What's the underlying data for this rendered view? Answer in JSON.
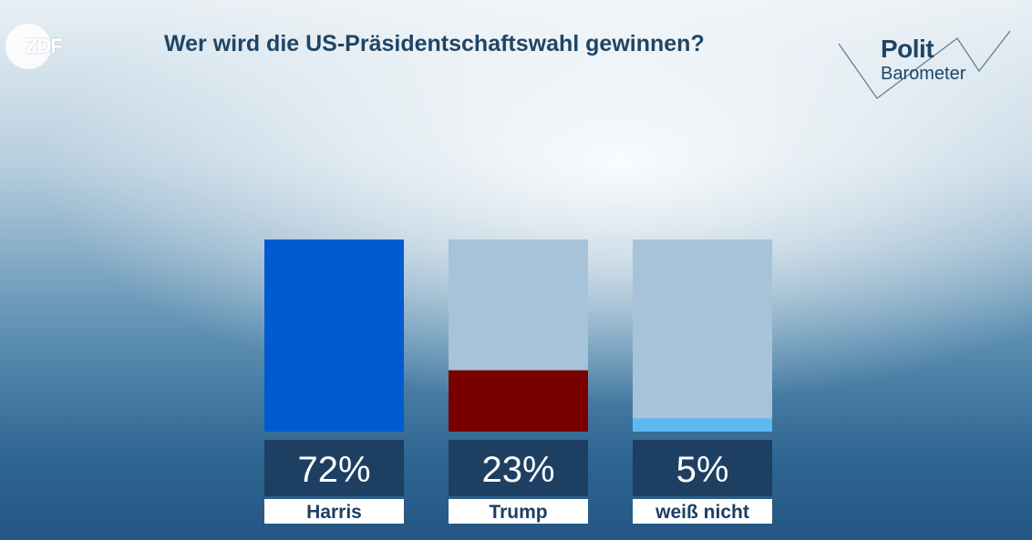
{
  "branding": {
    "channel_logo": "ZDF",
    "show_polit": "Polit",
    "show_barometer": "Barometer"
  },
  "chart_data": {
    "type": "bar",
    "title": "Wer wird die US-Präsidentschaftswahl gewinnen?",
    "categories": [
      "Harris",
      "Trump",
      "weiß nicht"
    ],
    "values": [
      72,
      23,
      5
    ],
    "value_labels": [
      "72%",
      "23%",
      "5%"
    ],
    "colors": [
      "#005bd1",
      "#7a0000",
      "#5db8f0"
    ],
    "ylim": [
      0,
      72
    ],
    "xlabel": "",
    "ylabel": ""
  }
}
